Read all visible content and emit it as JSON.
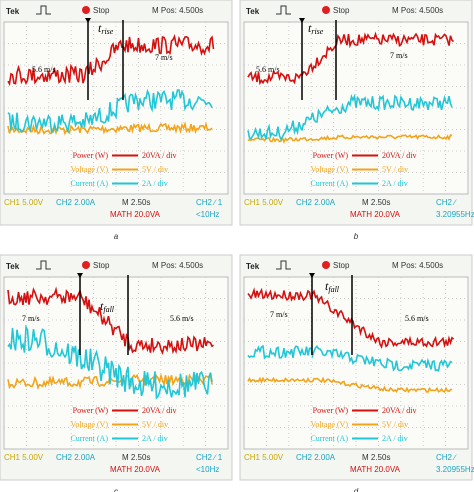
{
  "panels": [
    {
      "label": "a",
      "header": {
        "brand": "Tek",
        "status": "Stop",
        "position": "M Pos: 4.500s"
      },
      "annotations": {
        "speed_before": "5.6 m/s",
        "speed_after": "7 m/s",
        "time_symbol": "t",
        "time_sub": "rise"
      },
      "legend": [
        {
          "name": "Power (W)",
          "scale": "20VA / div"
        },
        {
          "name": "Voltage (V)",
          "scale": "5V / div"
        },
        {
          "name": "Current (A)",
          "scale": "2A / div"
        }
      ],
      "footer": {
        "ch1": "CH1 5.00V",
        "ch2": "CH2 2.00A",
        "timebase": "M 2.50s",
        "math": "MATH 20.0VA",
        "trigger": "CH2 ∕ 1",
        "frequency": "<10Hz"
      }
    },
    {
      "label": "b",
      "header": {
        "brand": "Tek",
        "status": "Stop",
        "position": "M Pos: 4.500s"
      },
      "annotations": {
        "speed_before": "5.6 m/s",
        "speed_after": "7 m/s",
        "time_symbol": "t",
        "time_sub": "rise"
      },
      "legend": [
        {
          "name": "Power (W)",
          "scale": "20VA / div"
        },
        {
          "name": "Voltage (V)",
          "scale": "5V / div"
        },
        {
          "name": "Current (A)",
          "scale": "2A / div"
        }
      ],
      "footer": {
        "ch1": "CH1 5.00V",
        "ch2": "CH2 2.00A",
        "timebase": "M 2.50s",
        "math": "MATH 20.0VA",
        "trigger": "CH2 ∕",
        "frequency": "3.20955Hz"
      }
    },
    {
      "label": "c",
      "header": {
        "brand": "Tek",
        "status": "Stop",
        "position": "M Pos: 4.500s"
      },
      "annotations": {
        "speed_before": "7 m/s",
        "speed_after": "5.6 m/s",
        "time_symbol": "t",
        "time_sub": "fall"
      },
      "legend": [
        {
          "name": "Power (W)",
          "scale": "20VA / div"
        },
        {
          "name": "Voltage (V)",
          "scale": "5V / div"
        },
        {
          "name": "Current (A)",
          "scale": "2A / div"
        }
      ],
      "footer": {
        "ch1": "CH1 5.00V",
        "ch2": "CH2 2.00A",
        "timebase": "M 2.50s",
        "math": "MATH 20.0VA",
        "trigger": "CH2 ∕ 1",
        "frequency": "<10Hz"
      }
    },
    {
      "label": "d",
      "header": {
        "brand": "Tek",
        "status": "Stop",
        "position": "M Pos: 4.500s"
      },
      "annotations": {
        "speed_before": "7 m/s",
        "speed_after": "5.6 m/s",
        "time_symbol": "t",
        "time_sub": "fall"
      },
      "legend": [
        {
          "name": "Power (W)",
          "scale": "20VA / div"
        },
        {
          "name": "Voltage (V)",
          "scale": "5V / div"
        },
        {
          "name": "Current (A)",
          "scale": "2A / div"
        }
      ],
      "footer": {
        "ch1": "CH1 5.00V",
        "ch2": "CH2 2.00A",
        "timebase": "M 2.50s",
        "math": "MATH 20.0VA",
        "trigger": "CH2 ∕",
        "frequency": "3.20955Hz"
      }
    }
  ]
}
